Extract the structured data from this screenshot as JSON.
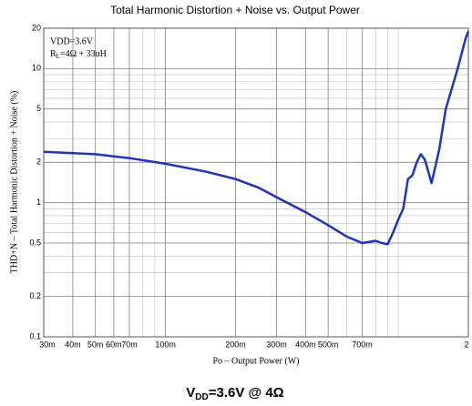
{
  "chart_data": {
    "type": "line",
    "title": "Total Harmonic Distortion + Noise vs. Output Power",
    "xlabel": "Po  –  Output Power (W)",
    "ylabel": "THD+N  –  Total Harmonic Distortion + Noise (%)",
    "annotations": [
      [
        "VDD=3.6V"
      ],
      [
        "R",
        "L",
        "=4Ω + 33uH"
      ]
    ],
    "caption": [
      "V",
      "DD",
      "=3.6V @ 4Ω"
    ],
    "xscale": "log",
    "yscale": "log",
    "grid": true,
    "xlim": [
      0.03,
      2
    ],
    "ylim": [
      0.1,
      20
    ],
    "xticks": [
      {
        "value": 0.03,
        "label": "30m"
      },
      {
        "value": 0.04,
        "label": "40m"
      },
      {
        "value": 0.05,
        "label": "50m"
      },
      {
        "value": 0.06,
        "label": "60m"
      },
      {
        "value": 0.07,
        "label": "70m"
      },
      {
        "value": 0.1,
        "label": "100m"
      },
      {
        "value": 0.2,
        "label": "200m"
      },
      {
        "value": 0.3,
        "label": "300m"
      },
      {
        "value": 0.4,
        "label": "400m"
      },
      {
        "value": 0.5,
        "label": "500m"
      },
      {
        "value": 0.7,
        "label": "700m"
      },
      2
    ],
    "yticks": [
      0.1,
      0.2,
      0.5,
      1,
      2,
      5,
      10,
      20
    ],
    "series": [
      {
        "name": "THD+N",
        "color": "#2233bb",
        "x": [
          0.03,
          0.05,
          0.07,
          0.1,
          0.15,
          0.2,
          0.25,
          0.3,
          0.4,
          0.5,
          0.6,
          0.7,
          0.8,
          0.85,
          0.9,
          0.95,
          1.0,
          1.05,
          1.1,
          1.15,
          1.2,
          1.25,
          1.3,
          1.39,
          1.5,
          1.6,
          1.8,
          1.95,
          2.0
        ],
        "values": [
          2.4,
          2.3,
          2.15,
          1.95,
          1.7,
          1.5,
          1.3,
          1.1,
          0.85,
          0.68,
          0.56,
          0.5,
          0.52,
          0.5,
          0.49,
          0.6,
          0.75,
          0.9,
          1.5,
          1.6,
          2.0,
          2.3,
          2.1,
          1.4,
          2.5,
          5,
          10,
          17,
          19
        ]
      }
    ]
  }
}
